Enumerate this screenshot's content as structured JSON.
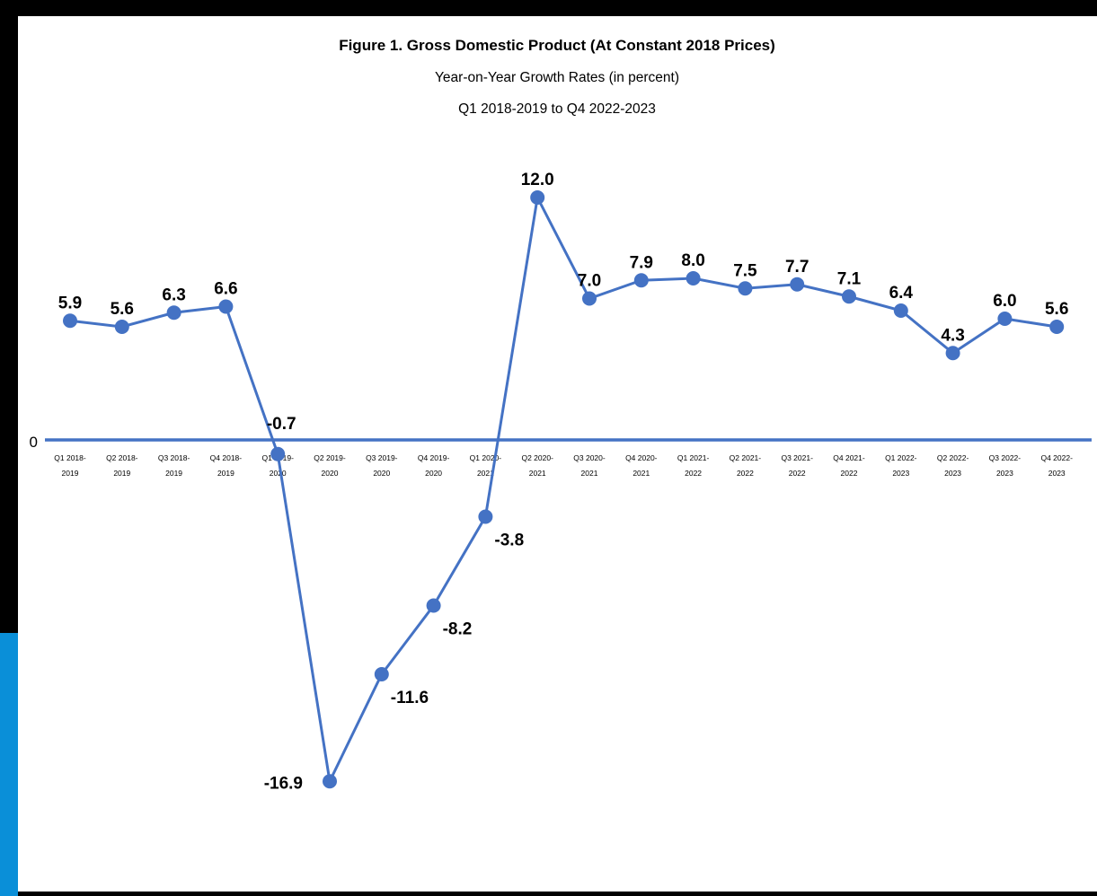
{
  "chart_data": {
    "type": "line",
    "title": "Figure 1. Gross Domestic Product (At Constant 2018 Prices)",
    "subtitle_lines": [
      "Year-on-Year Growth Rates (in percent)",
      "Q1 2018-2019 to Q4 2022-2023"
    ],
    "y_zero_label": "0",
    "grid": false,
    "legend": "none",
    "categories": [
      [
        "Q1 2018-",
        "2019"
      ],
      [
        "Q2 2018-",
        "2019"
      ],
      [
        "Q3 2018-",
        "2019"
      ],
      [
        "Q4 2018-",
        "2019"
      ],
      [
        "Q1 2019-",
        "2020"
      ],
      [
        "Q2 2019-",
        "2020"
      ],
      [
        "Q3 2019-",
        "2020"
      ],
      [
        "Q4 2019-",
        "2020"
      ],
      [
        "Q1 2020-",
        "2021"
      ],
      [
        "Q2 2020-",
        "2021"
      ],
      [
        "Q3 2020-",
        "2021"
      ],
      [
        "Q4 2020-",
        "2021"
      ],
      [
        "Q1 2021-",
        "2022"
      ],
      [
        "Q2 2021-",
        "2022"
      ],
      [
        "Q3 2021-",
        "2022"
      ],
      [
        "Q4 2021-",
        "2022"
      ],
      [
        "Q1 2022-",
        "2023"
      ],
      [
        "Q2 2022-",
        "2023"
      ],
      [
        "Q3 2022-",
        "2023"
      ],
      [
        "Q4 2022-",
        "2023"
      ]
    ],
    "values": [
      5.9,
      5.6,
      6.3,
      6.6,
      -0.7,
      -16.9,
      -11.6,
      -8.2,
      -3.8,
      12.0,
      7.0,
      7.9,
      8.0,
      7.5,
      7.7,
      7.1,
      6.4,
      4.3,
      6.0,
      5.6
    ],
    "value_labels": [
      "5.9",
      "5.6",
      "6.3",
      "6.6",
      "-0.7",
      "-16.9",
      "-11.6",
      "-8.2",
      "-3.8",
      "12.0",
      "7.0",
      "7.9",
      "8.0",
      "7.5",
      "7.7",
      "7.1",
      "6.4",
      "4.3",
      "6.0",
      "5.6"
    ],
    "line_color": "#4472c4",
    "axis_color": "#4472c4"
  }
}
